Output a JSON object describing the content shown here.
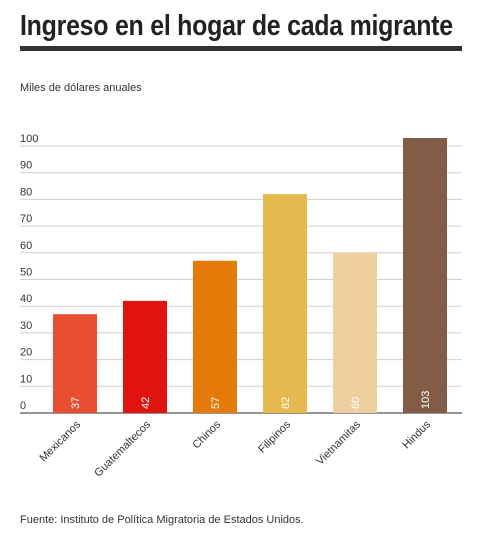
{
  "header": {
    "title": "Ingreso en el hogar de cada migrante",
    "units": "Miles de dólares anuales"
  },
  "footer": {
    "source": "Fuente: Instituto de Política Migratoria de Estados Unidos."
  },
  "chart_data": {
    "type": "bar",
    "title": "Ingreso en el hogar de cada migrante",
    "ylabel": "Miles de dólares anuales",
    "xlabel": "",
    "categories": [
      "Mexicanos",
      "Guatemaltecos",
      "Chinos",
      "Filipinos",
      "Vietnamitas",
      "Hindus"
    ],
    "values": [
      37,
      42,
      57,
      82,
      60,
      103
    ],
    "colors": [
      "#e84e30",
      "#e0140e",
      "#e57a0a",
      "#e6b94e",
      "#eecf9f",
      "#835c48"
    ],
    "yticks": [
      0,
      10,
      20,
      30,
      40,
      50,
      60,
      70,
      80,
      90,
      100
    ],
    "ylim": [
      0,
      105
    ],
    "grid": true,
    "legend": "none"
  }
}
